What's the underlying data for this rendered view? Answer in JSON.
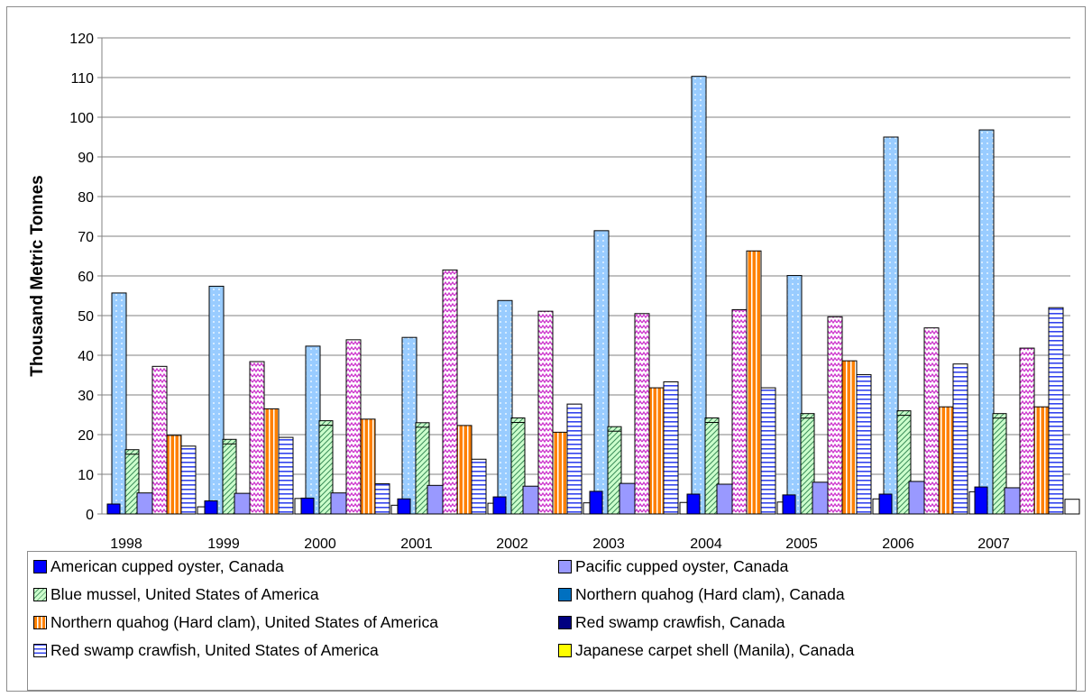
{
  "chart_data": {
    "type": "bar",
    "title": "",
    "xlabel": "",
    "ylabel": "Thousand Metric Tonnes",
    "ylim": [
      0,
      120
    ],
    "yticks": [
      0,
      10,
      20,
      30,
      40,
      50,
      60,
      70,
      80,
      90,
      100,
      110,
      120
    ],
    "grid": true,
    "legend_position": "bottom",
    "categories": [
      "1998",
      "1999",
      "2000",
      "2001",
      "2002",
      "2003",
      "2004",
      "2005",
      "2006",
      "2007"
    ],
    "bar_order": [
      "red-swamp-ca",
      "american-oyster",
      "blue-mussel",
      "pacific-oyster",
      "japanese-carpet",
      "quahog-us",
      "crawfish-us",
      "red-swamp-ca-2"
    ],
    "series": [
      {
        "name": "American cupped oyster, Canada",
        "color": "#0000ff",
        "pattern": "solid",
        "values": [
          2.5,
          3.3,
          4.0,
          3.8,
          4.3,
          5.7,
          5.0,
          4.8,
          5.0,
          6.8
        ]
      },
      {
        "name": "Pacific cupped oyster, Canada",
        "color": "#9999ff",
        "pattern": "solid",
        "values": [
          5.3,
          5.2,
          5.3,
          7.2,
          7.0,
          7.7,
          7.5,
          8.0,
          8.2,
          6.6
        ]
      },
      {
        "name": "Blue mussel, United States of America",
        "color": "#ccffcc",
        "pattern": "diagonal",
        "values": [
          16.2,
          18.8,
          23.5,
          23.0,
          24.2,
          22.0,
          24.2,
          25.3,
          26.0,
          25.3
        ]
      },
      {
        "name": "Northern quahog (Hard clam), Canada",
        "color": "#0070c0",
        "pattern": "solid",
        "values": [
          0,
          0,
          0,
          0,
          0,
          0,
          0,
          0,
          0,
          0
        ]
      },
      {
        "name": "Northern quahog (Hard clam), United States of America",
        "color": "#ff8000",
        "pattern": "vertical",
        "values": [
          19.8,
          26.5,
          23.9,
          22.3,
          20.6,
          31.8,
          66.3,
          38.6,
          27.0,
          27.0
        ]
      },
      {
        "name": "Red swamp crawfish, Canada",
        "color": "#000080",
        "pattern": "solid",
        "values": [
          0,
          0,
          0,
          0,
          0,
          0,
          0,
          0,
          0,
          0
        ]
      },
      {
        "name": "Red swamp crawfish, United States of America",
        "color": "#ffffff",
        "pattern": "horizontal",
        "values": [
          17.1,
          19.3,
          7.6,
          13.8,
          27.7,
          33.3,
          31.8,
          35.1,
          37.8,
          52.0
        ]
      },
      {
        "name": "Japanese carpet shell (Manila), Canada",
        "color": "#ffff00",
        "pattern": "solid",
        "values": [
          0,
          0,
          0,
          0,
          0,
          0,
          0,
          0,
          0,
          0
        ]
      }
    ],
    "extra_series": [
      {
        "color": "#99ccff",
        "pattern": "dots",
        "values": [
          55.7,
          57.4,
          42.3,
          44.5,
          53.8,
          71.4,
          110.3,
          60.1,
          95.0,
          96.8
        ]
      },
      {
        "color": "#ff66ff",
        "pattern": "zigzag",
        "values": [
          37.2,
          38.4,
          43.9,
          61.5,
          51.1,
          50.5,
          51.5,
          49.7,
          46.9,
          41.8
        ]
      },
      {
        "color": "#ffffff",
        "pattern": "solid",
        "values": [
          1.8,
          3.9,
          2.2,
          2.7,
          2.8,
          2.9,
          3.0,
          3.8,
          5.6,
          3.7
        ]
      }
    ],
    "legend": [
      {
        "label": "American cupped oyster, Canada",
        "color": "#0000ff",
        "pattern": "solid"
      },
      {
        "label": "Pacific cupped oyster, Canada",
        "color": "#9999ff",
        "pattern": "solid"
      },
      {
        "label": "Blue mussel, United States of America",
        "color": "#ccffcc",
        "pattern": "diagonal"
      },
      {
        "label": "Northern quahog (Hard clam), Canada",
        "color": "#0070c0",
        "pattern": "solid"
      },
      {
        "label": "Northern quahog (Hard clam), United States of America",
        "color": "#ff8000",
        "pattern": "vertical"
      },
      {
        "label": "Red swamp crawfish, Canada",
        "color": "#000080",
        "pattern": "solid"
      },
      {
        "label": "Red swamp crawfish, United States of America",
        "color": "#ffffff",
        "pattern": "horizontal"
      },
      {
        "label": "Japanese carpet shell (Manila), Canada",
        "color": "#ffff00",
        "pattern": "solid"
      }
    ]
  }
}
